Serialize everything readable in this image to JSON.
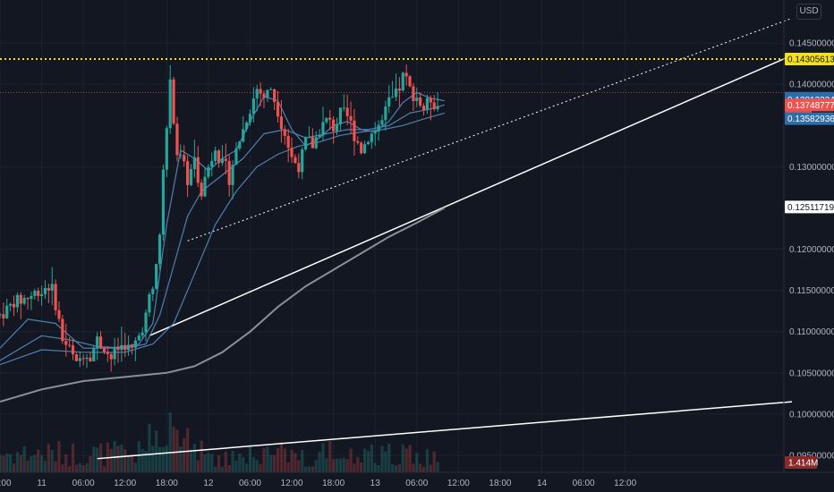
{
  "currency_label": "USD",
  "colors": {
    "background": "#131722",
    "grid": "#1e222d",
    "up": "#26a69a",
    "down": "#ef5350",
    "ma": "#4f7fb0",
    "ma_long": "#8c8f96",
    "trendline": "#ffffff",
    "resistance": "#f5e11a",
    "axis_text": "#b2b5be"
  },
  "chart_data": {
    "type": "candlestick",
    "x_tick_labels": [
      "18:00",
      "11",
      "06:00",
      "12:00",
      "18:00",
      "12",
      "06:00",
      "12:00",
      "18:00",
      "13",
      "06:00",
      "12:00",
      "18:00",
      "14",
      "06:00",
      "12:00"
    ],
    "y_tick_labels": [
      "0.14500000",
      "0.14000000",
      "0.13000000",
      "0.12000000",
      "0.11500000",
      "0.11000000",
      "0.10500000",
      "0.10000000",
      "0.09500000"
    ],
    "ylim": [
      0.0946,
      0.1495
    ],
    "x_range_hours": [
      -6,
      108
    ],
    "price_labels": [
      {
        "value": 0.14305613,
        "text": "0.14305613",
        "kind": "resistance"
      },
      {
        "value": 0.13831,
        "text": "0.13831000",
        "kind": "ma"
      },
      {
        "value": 0.13813324,
        "text": "0.13813324",
        "kind": "ma"
      },
      {
        "value": 0.13748777,
        "text": "0.13748777",
        "kind": "last"
      },
      {
        "value": 0.13582936,
        "text": "0.13582936",
        "kind": "ma"
      },
      {
        "value": 0.12511719,
        "text": "0.12511719",
        "kind": "plain"
      }
    ],
    "countdown": "04:41",
    "volume_label": "1.414M",
    "anchors": [
      [
        -6,
        0.112
      ],
      [
        -4,
        0.1135
      ],
      [
        -2,
        0.1142
      ],
      [
        0,
        0.115
      ],
      [
        1,
        0.1158
      ],
      [
        2,
        0.1135
      ],
      [
        3,
        0.109
      ],
      [
        4,
        0.108
      ],
      [
        5,
        0.106
      ],
      [
        6,
        0.1075
      ],
      [
        7,
        0.107
      ],
      [
        8,
        0.109
      ],
      [
        9,
        0.108
      ],
      [
        10,
        0.1068
      ],
      [
        11,
        0.108
      ],
      [
        12,
        0.1085
      ],
      [
        13,
        0.1075
      ],
      [
        14,
        0.1095
      ],
      [
        15,
        0.112
      ],
      [
        16,
        0.116
      ],
      [
        17,
        0.121
      ],
      [
        17.5,
        0.13
      ],
      [
        18.5,
        0.1398
      ],
      [
        19.5,
        0.132
      ],
      [
        21,
        0.1285
      ],
      [
        22,
        0.1305
      ],
      [
        23,
        0.127
      ],
      [
        24,
        0.13
      ],
      [
        25,
        0.1325
      ],
      [
        26,
        0.13
      ],
      [
        27,
        0.129
      ],
      [
        28,
        0.132
      ],
      [
        29,
        0.1345
      ],
      [
        30,
        0.137
      ],
      [
        31,
        0.1395
      ],
      [
        32,
        0.1385
      ],
      [
        33,
        0.1395
      ],
      [
        34,
        0.137
      ],
      [
        35,
        0.134
      ],
      [
        36,
        0.131
      ],
      [
        37,
        0.13
      ],
      [
        38,
        0.133
      ],
      [
        39,
        0.1325
      ],
      [
        40,
        0.1345
      ],
      [
        41,
        0.1355
      ],
      [
        42,
        0.135
      ],
      [
        43,
        0.136
      ],
      [
        44,
        0.136
      ],
      [
        45,
        0.134
      ],
      [
        46,
        0.132
      ],
      [
        47,
        0.1335
      ],
      [
        48,
        0.1345
      ],
      [
        49,
        0.1355
      ],
      [
        50,
        0.1375
      ],
      [
        51,
        0.1385
      ],
      [
        52,
        0.141
      ],
      [
        53,
        0.1395
      ],
      [
        54,
        0.1385
      ],
      [
        55,
        0.137
      ],
      [
        56,
        0.1385
      ],
      [
        57,
        0.1375
      ]
    ],
    "ma_short": [
      [
        -6,
        0.108
      ],
      [
        -2,
        0.1115
      ],
      [
        2,
        0.111
      ],
      [
        6,
        0.108
      ],
      [
        10,
        0.108
      ],
      [
        14,
        0.1085
      ],
      [
        16,
        0.111
      ],
      [
        18,
        0.123
      ],
      [
        20,
        0.132
      ],
      [
        22,
        0.131
      ],
      [
        24,
        0.1295
      ],
      [
        26,
        0.131
      ],
      [
        28,
        0.132
      ],
      [
        30,
        0.1355
      ],
      [
        32,
        0.1385
      ],
      [
        34,
        0.138
      ],
      [
        36,
        0.1345
      ],
      [
        38,
        0.1325
      ],
      [
        40,
        0.1335
      ],
      [
        42,
        0.135
      ],
      [
        44,
        0.1355
      ],
      [
        46,
        0.1345
      ],
      [
        48,
        0.1342
      ],
      [
        50,
        0.1355
      ],
      [
        52,
        0.1378
      ],
      [
        54,
        0.139
      ],
      [
        56,
        0.1383
      ],
      [
        58,
        0.138
      ]
    ],
    "ma_mid": [
      [
        -6,
        0.1065
      ],
      [
        0,
        0.1095
      ],
      [
        4,
        0.109
      ],
      [
        8,
        0.1082
      ],
      [
        12,
        0.108
      ],
      [
        15,
        0.1085
      ],
      [
        17,
        0.112
      ],
      [
        19,
        0.118
      ],
      [
        21,
        0.124
      ],
      [
        23,
        0.127
      ],
      [
        26,
        0.129
      ],
      [
        29,
        0.131
      ],
      [
        32,
        0.134
      ],
      [
        35,
        0.1345
      ],
      [
        38,
        0.1335
      ],
      [
        41,
        0.134
      ],
      [
        44,
        0.1345
      ],
      [
        47,
        0.1345
      ],
      [
        50,
        0.135
      ],
      [
        53,
        0.1365
      ],
      [
        56,
        0.137
      ],
      [
        58,
        0.1375
      ]
    ],
    "ma_slow": [
      [
        -6,
        0.106
      ],
      [
        0,
        0.1078
      ],
      [
        6,
        0.1075
      ],
      [
        12,
        0.1075
      ],
      [
        16,
        0.1085
      ],
      [
        19,
        0.111
      ],
      [
        22,
        0.117
      ],
      [
        25,
        0.123
      ],
      [
        28,
        0.127
      ],
      [
        31,
        0.13
      ],
      [
        34,
        0.1315
      ],
      [
        37,
        0.1325
      ],
      [
        40,
        0.133
      ],
      [
        43,
        0.1338
      ],
      [
        46,
        0.1342
      ],
      [
        49,
        0.1345
      ],
      [
        52,
        0.135
      ],
      [
        55,
        0.1358
      ],
      [
        58,
        0.1365
      ]
    ],
    "ma_long": [
      [
        -6,
        0.1015
      ],
      [
        0,
        0.103
      ],
      [
        6,
        0.104
      ],
      [
        12,
        0.1045
      ],
      [
        18,
        0.105
      ],
      [
        22,
        0.1058
      ],
      [
        26,
        0.1075
      ],
      [
        30,
        0.11
      ],
      [
        34,
        0.113
      ],
      [
        38,
        0.1155
      ],
      [
        42,
        0.1175
      ],
      [
        46,
        0.1195
      ],
      [
        50,
        0.1215
      ],
      [
        54,
        0.1232
      ],
      [
        58,
        0.125
      ]
    ],
    "trendlines": [
      {
        "style": "solid",
        "points": [
          [
            15.5,
            0.1095
          ],
          [
            108,
            0.1435
          ]
        ]
      },
      {
        "style": "solid",
        "points": [
          [
            8,
            0.0946
          ],
          [
            108,
            0.1015
          ]
        ]
      },
      {
        "style": "dotted",
        "points": [
          [
            21,
            0.121
          ],
          [
            108,
            0.148
          ]
        ]
      },
      {
        "style": "dotted",
        "points": [
          [
            -6,
            0.139
          ],
          [
            108,
            0.139
          ]
        ],
        "color": "down"
      }
    ],
    "resistance_level": 0.14305613
  }
}
